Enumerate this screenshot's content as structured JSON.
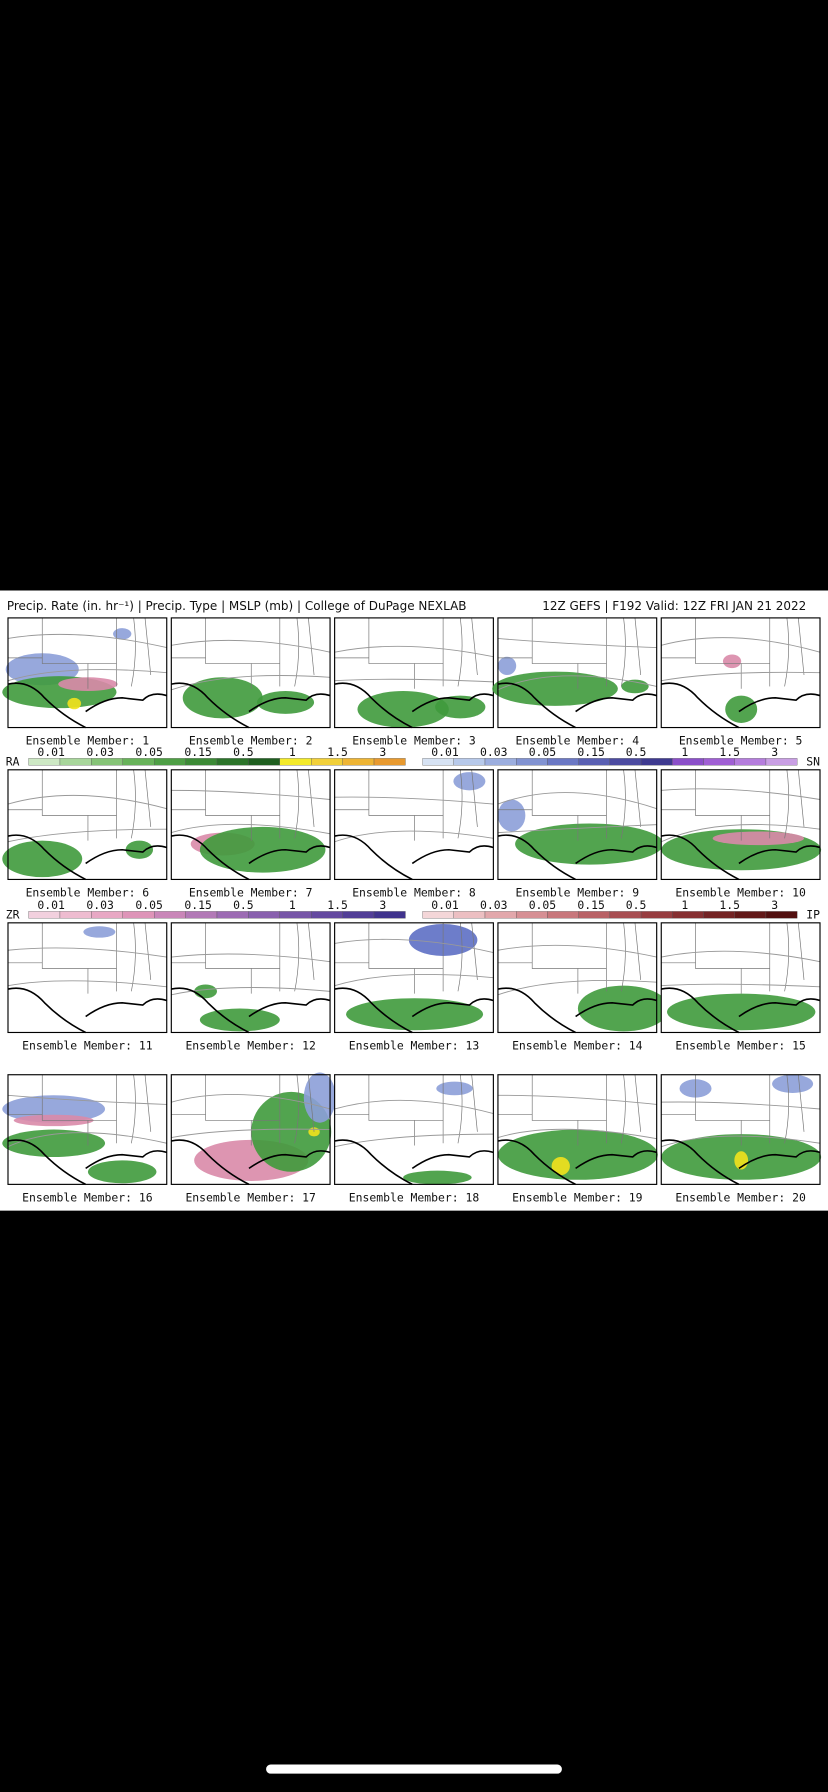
{
  "header": {
    "title_left": "Precip. Rate (in. hr⁻¹) | Precip. Type | MSLP (mb) | College of DuPage NEXLAB",
    "title_right": "12Z GEFS | F192 Valid: 12Z FRI JAN 21 2022"
  },
  "panels": [
    {
      "label": "Ensemble Member: 1"
    },
    {
      "label": "Ensemble Member: 2"
    },
    {
      "label": "Ensemble Member: 3"
    },
    {
      "label": "Ensemble Member: 4"
    },
    {
      "label": "Ensemble Member: 5"
    },
    {
      "label": "Ensemble Member: 6"
    },
    {
      "label": "Ensemble Member: 7"
    },
    {
      "label": "Ensemble Member: 8"
    },
    {
      "label": "Ensemble Member: 9"
    },
    {
      "label": "Ensemble Member: 10"
    },
    {
      "label": "Ensemble Member: 11"
    },
    {
      "label": "Ensemble Member: 12"
    },
    {
      "label": "Ensemble Member: 13"
    },
    {
      "label": "Ensemble Member: 14"
    },
    {
      "label": "Ensemble Member: 15"
    },
    {
      "label": "Ensemble Member: 16"
    },
    {
      "label": "Ensemble Member: 17"
    },
    {
      "label": "Ensemble Member: 18"
    },
    {
      "label": "Ensemble Member: 19"
    },
    {
      "label": "Ensemble Member: 20"
    }
  ],
  "legends": [
    {
      "name": "RA",
      "ticks": [
        "0.01",
        "0.03",
        "0.05",
        "0.15",
        "0.5",
        "1",
        "1.5",
        "3"
      ]
    },
    {
      "name": "SN",
      "ticks": [
        "0.01",
        "0.03",
        "0.05",
        "0.15",
        "0.5",
        "1",
        "1.5",
        "3"
      ]
    },
    {
      "name": "ZR",
      "ticks": [
        "0.01",
        "0.03",
        "0.05",
        "0.15",
        "0.5",
        "1",
        "1.5",
        "3"
      ]
    },
    {
      "name": "IP",
      "ticks": [
        "0.01",
        "0.03",
        "0.05",
        "0.15",
        "0.5",
        "1",
        "1.5",
        "3"
      ]
    }
  ]
}
